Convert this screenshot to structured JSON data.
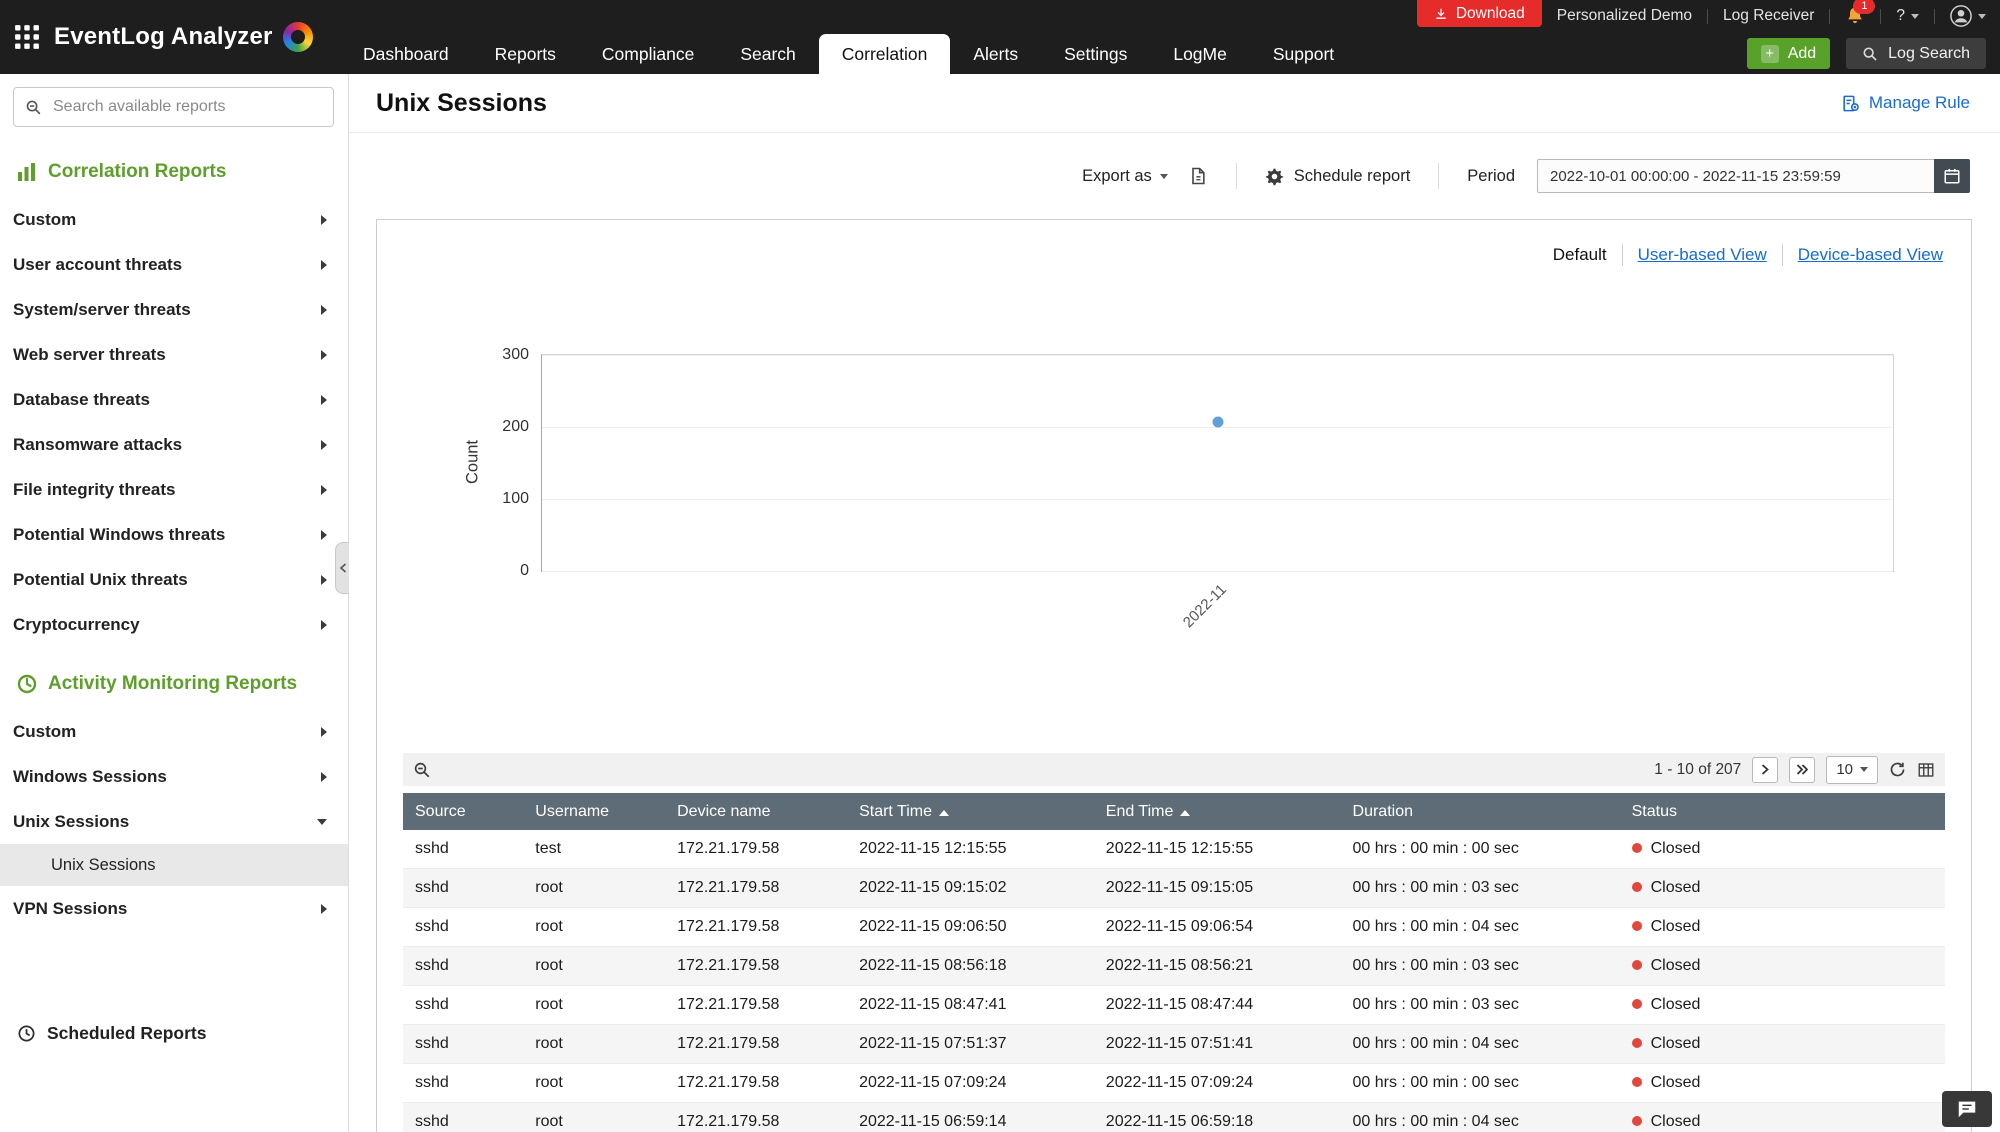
{
  "colors": {
    "accent_green": "#5f9e2d",
    "brand_red": "#e62b2b",
    "link_blue": "#1a6cc8",
    "table_header": "#5d6c76",
    "status_closed_dot": "#e0483e"
  },
  "topbar": {
    "logo_text": "EventLog Analyzer",
    "utility": {
      "download_label": "Download",
      "personalized_demo_label": "Personalized Demo",
      "log_receiver_label": "Log Receiver",
      "notification_count": "1",
      "help_label": "?"
    },
    "nav_tabs": [
      {
        "label": "Dashboard",
        "active": false
      },
      {
        "label": "Reports",
        "active": false
      },
      {
        "label": "Compliance",
        "active": false
      },
      {
        "label": "Search",
        "active": false
      },
      {
        "label": "Correlation",
        "active": true
      },
      {
        "label": "Alerts",
        "active": false
      },
      {
        "label": "Settings",
        "active": false
      },
      {
        "label": "LogMe",
        "active": false
      },
      {
        "label": "Support",
        "active": false
      }
    ],
    "add_button_label": "Add",
    "log_search_label": "Log Search"
  },
  "sidebar": {
    "search_placeholder": "Search available reports",
    "sections": [
      {
        "title": "Correlation Reports",
        "icon": "bar-chart-icon",
        "items": [
          {
            "label": "Custom"
          },
          {
            "label": "User account threats"
          },
          {
            "label": "System/server threats"
          },
          {
            "label": "Web server threats"
          },
          {
            "label": "Database threats"
          },
          {
            "label": "Ransomware attacks"
          },
          {
            "label": "File integrity threats"
          },
          {
            "label": "Potential Windows threats"
          },
          {
            "label": "Potential Unix threats"
          },
          {
            "label": "Cryptocurrency"
          }
        ]
      },
      {
        "title": "Activity Monitoring Reports",
        "icon": "activity-icon",
        "items": [
          {
            "label": "Custom"
          },
          {
            "label": "Windows Sessions"
          },
          {
            "label": "Unix Sessions",
            "expanded": true,
            "children": [
              {
                "label": "Unix Sessions",
                "selected": true
              }
            ]
          },
          {
            "label": "VPN Sessions"
          }
        ]
      }
    ],
    "scheduled_reports_label": "Scheduled Reports"
  },
  "main": {
    "title": "Unix Sessions",
    "manage_rule_label": "Manage Rule",
    "toolbar": {
      "export_label": "Export as",
      "schedule_label": "Schedule report",
      "period_label": "Period",
      "period_value": "2022-10-01 00:00:00 - 2022-11-15 23:59:59"
    },
    "view_tabs": [
      {
        "label": "Default",
        "active": true
      },
      {
        "label": "User-based View",
        "active": false
      },
      {
        "label": "Device-based View",
        "active": false
      }
    ],
    "list_toolbar": {
      "pagination_text": "1 - 10 of 207",
      "page_size": "10"
    },
    "table": {
      "columns": [
        {
          "label": "Source",
          "sort": false
        },
        {
          "label": "Username",
          "sort": false
        },
        {
          "label": "Device name",
          "sort": false
        },
        {
          "label": "Start Time",
          "sort": true
        },
        {
          "label": "End Time",
          "sort": true
        },
        {
          "label": "Duration",
          "sort": false
        },
        {
          "label": "Status",
          "sort": false
        }
      ],
      "rows": [
        {
          "source": "sshd",
          "username": "test",
          "device": "172.21.179.58",
          "start": "2022-11-15 12:15:55",
          "end": "2022-11-15 12:15:55",
          "duration": "00 hrs : 00 min : 00 sec",
          "status": "Closed"
        },
        {
          "source": "sshd",
          "username": "root",
          "device": "172.21.179.58",
          "start": "2022-11-15 09:15:02",
          "end": "2022-11-15 09:15:05",
          "duration": "00 hrs : 00 min : 03 sec",
          "status": "Closed"
        },
        {
          "source": "sshd",
          "username": "root",
          "device": "172.21.179.58",
          "start": "2022-11-15 09:06:50",
          "end": "2022-11-15 09:06:54",
          "duration": "00 hrs : 00 min : 04 sec",
          "status": "Closed"
        },
        {
          "source": "sshd",
          "username": "root",
          "device": "172.21.179.58",
          "start": "2022-11-15 08:56:18",
          "end": "2022-11-15 08:56:21",
          "duration": "00 hrs : 00 min : 03 sec",
          "status": "Closed"
        },
        {
          "source": "sshd",
          "username": "root",
          "device": "172.21.179.58",
          "start": "2022-11-15 08:47:41",
          "end": "2022-11-15 08:47:44",
          "duration": "00 hrs : 00 min : 03 sec",
          "status": "Closed"
        },
        {
          "source": "sshd",
          "username": "root",
          "device": "172.21.179.58",
          "start": "2022-11-15 07:51:37",
          "end": "2022-11-15 07:51:41",
          "duration": "00 hrs : 00 min : 04 sec",
          "status": "Closed"
        },
        {
          "source": "sshd",
          "username": "root",
          "device": "172.21.179.58",
          "start": "2022-11-15 07:09:24",
          "end": "2022-11-15 07:09:24",
          "duration": "00 hrs : 00 min : 00 sec",
          "status": "Closed"
        },
        {
          "source": "sshd",
          "username": "root",
          "device": "172.21.179.58",
          "start": "2022-11-15 06:59:14",
          "end": "2022-11-15 06:59:18",
          "duration": "00 hrs : 00 min : 04 sec",
          "status": "Closed"
        }
      ]
    }
  },
  "chart_data": {
    "type": "scatter",
    "title": "",
    "x": [
      "2022-11"
    ],
    "series": [
      {
        "name": "Count",
        "values": [
          207
        ]
      }
    ],
    "xlabel": "",
    "ylabel": "Count",
    "yticks": [
      0,
      100,
      200,
      300
    ],
    "ylim": [
      0,
      300
    ],
    "grid": true,
    "legend": false,
    "point_color": "#64a0d8"
  }
}
